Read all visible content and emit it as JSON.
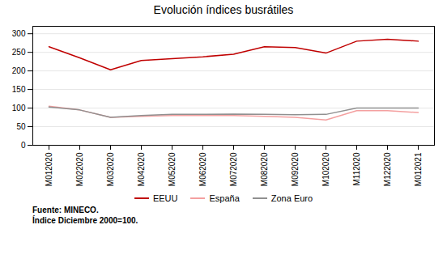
{
  "chart_data": {
    "type": "line",
    "title": "Evolución índices busrátiles",
    "categories": [
      "M012020",
      "M022020",
      "M032020",
      "M042020",
      "M052020",
      "M062020",
      "M072020",
      "M082020",
      "M092020",
      "M102020",
      "M112020",
      "M122020",
      "M012021"
    ],
    "series": [
      {
        "name": "EEUU",
        "color": "#c00000",
        "values": [
          265,
          235,
          203,
          228,
          233,
          238,
          245,
          265,
          263,
          248,
          280,
          285,
          280
        ]
      },
      {
        "name": "España",
        "color": "#f4a0a0",
        "values": [
          105,
          95,
          75,
          78,
          80,
          80,
          80,
          78,
          75,
          68,
          93,
          93,
          88
        ]
      },
      {
        "name": "Zona Euro",
        "color": "#909090",
        "values": [
          103,
          95,
          75,
          80,
          83,
          83,
          84,
          83,
          82,
          83,
          100,
          100,
          100
        ]
      }
    ],
    "ylim": [
      0,
      320
    ],
    "yticks": [
      0,
      50,
      100,
      150,
      200,
      250,
      300
    ],
    "grid": true,
    "legend": "bottom",
    "annotations": [
      "Fuente: MINECO.",
      "Índice Diciembre 2000=100."
    ]
  }
}
